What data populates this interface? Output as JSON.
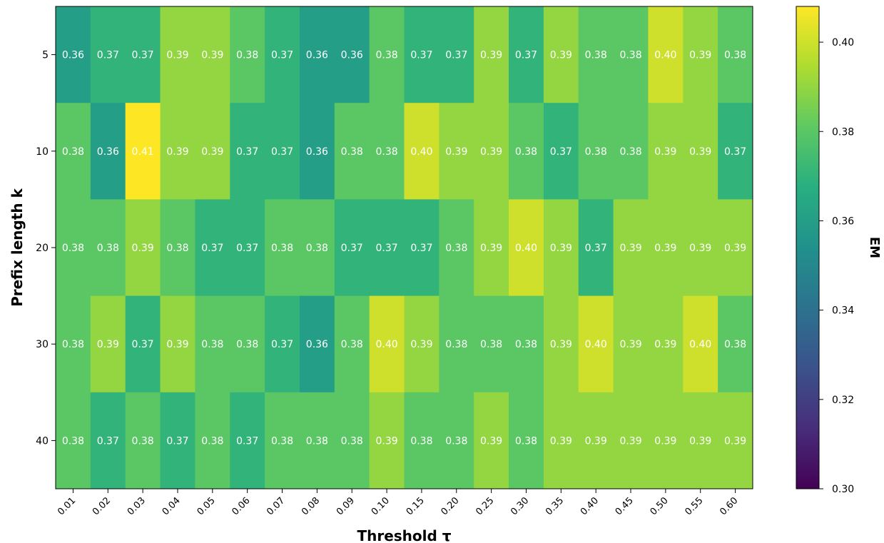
{
  "chart_data": {
    "type": "heatmap",
    "xlabel": "Threshold τ",
    "ylabel": "Prefix length k",
    "x_categories": [
      "0.01",
      "0.02",
      "0.03",
      "0.04",
      "0.05",
      "0.06",
      "0.07",
      "0.08",
      "0.09",
      "0.10",
      "0.15",
      "0.20",
      "0.25",
      "0.30",
      "0.35",
      "0.40",
      "0.45",
      "0.50",
      "0.55",
      "0.60"
    ],
    "y_categories": [
      "5",
      "10",
      "20",
      "30",
      "40"
    ],
    "values": [
      [
        0.36,
        0.37,
        0.37,
        0.39,
        0.39,
        0.38,
        0.37,
        0.36,
        0.36,
        0.38,
        0.37,
        0.37,
        0.39,
        0.37,
        0.39,
        0.38,
        0.38,
        0.4,
        0.39,
        0.38
      ],
      [
        0.38,
        0.36,
        0.41,
        0.39,
        0.39,
        0.37,
        0.37,
        0.36,
        0.38,
        0.38,
        0.4,
        0.39,
        0.39,
        0.38,
        0.37,
        0.38,
        0.38,
        0.39,
        0.39,
        0.37
      ],
      [
        0.38,
        0.38,
        0.39,
        0.38,
        0.37,
        0.37,
        0.38,
        0.38,
        0.37,
        0.37,
        0.37,
        0.38,
        0.39,
        0.4,
        0.39,
        0.37,
        0.39,
        0.39,
        0.39,
        0.39
      ],
      [
        0.38,
        0.39,
        0.37,
        0.39,
        0.38,
        0.38,
        0.37,
        0.36,
        0.38,
        0.4,
        0.39,
        0.38,
        0.38,
        0.38,
        0.39,
        0.4,
        0.39,
        0.39,
        0.4,
        0.38
      ],
      [
        0.38,
        0.37,
        0.38,
        0.37,
        0.38,
        0.37,
        0.38,
        0.38,
        0.38,
        0.39,
        0.38,
        0.38,
        0.39,
        0.38,
        0.39,
        0.39,
        0.39,
        0.39,
        0.39,
        0.39
      ]
    ],
    "colorbar": {
      "label": "EM",
      "colormap": "viridis",
      "range": [
        0.3,
        0.408
      ],
      "ticks": [
        "0.30",
        "0.32",
        "0.34",
        "0.36",
        "0.38",
        "0.40"
      ]
    }
  }
}
